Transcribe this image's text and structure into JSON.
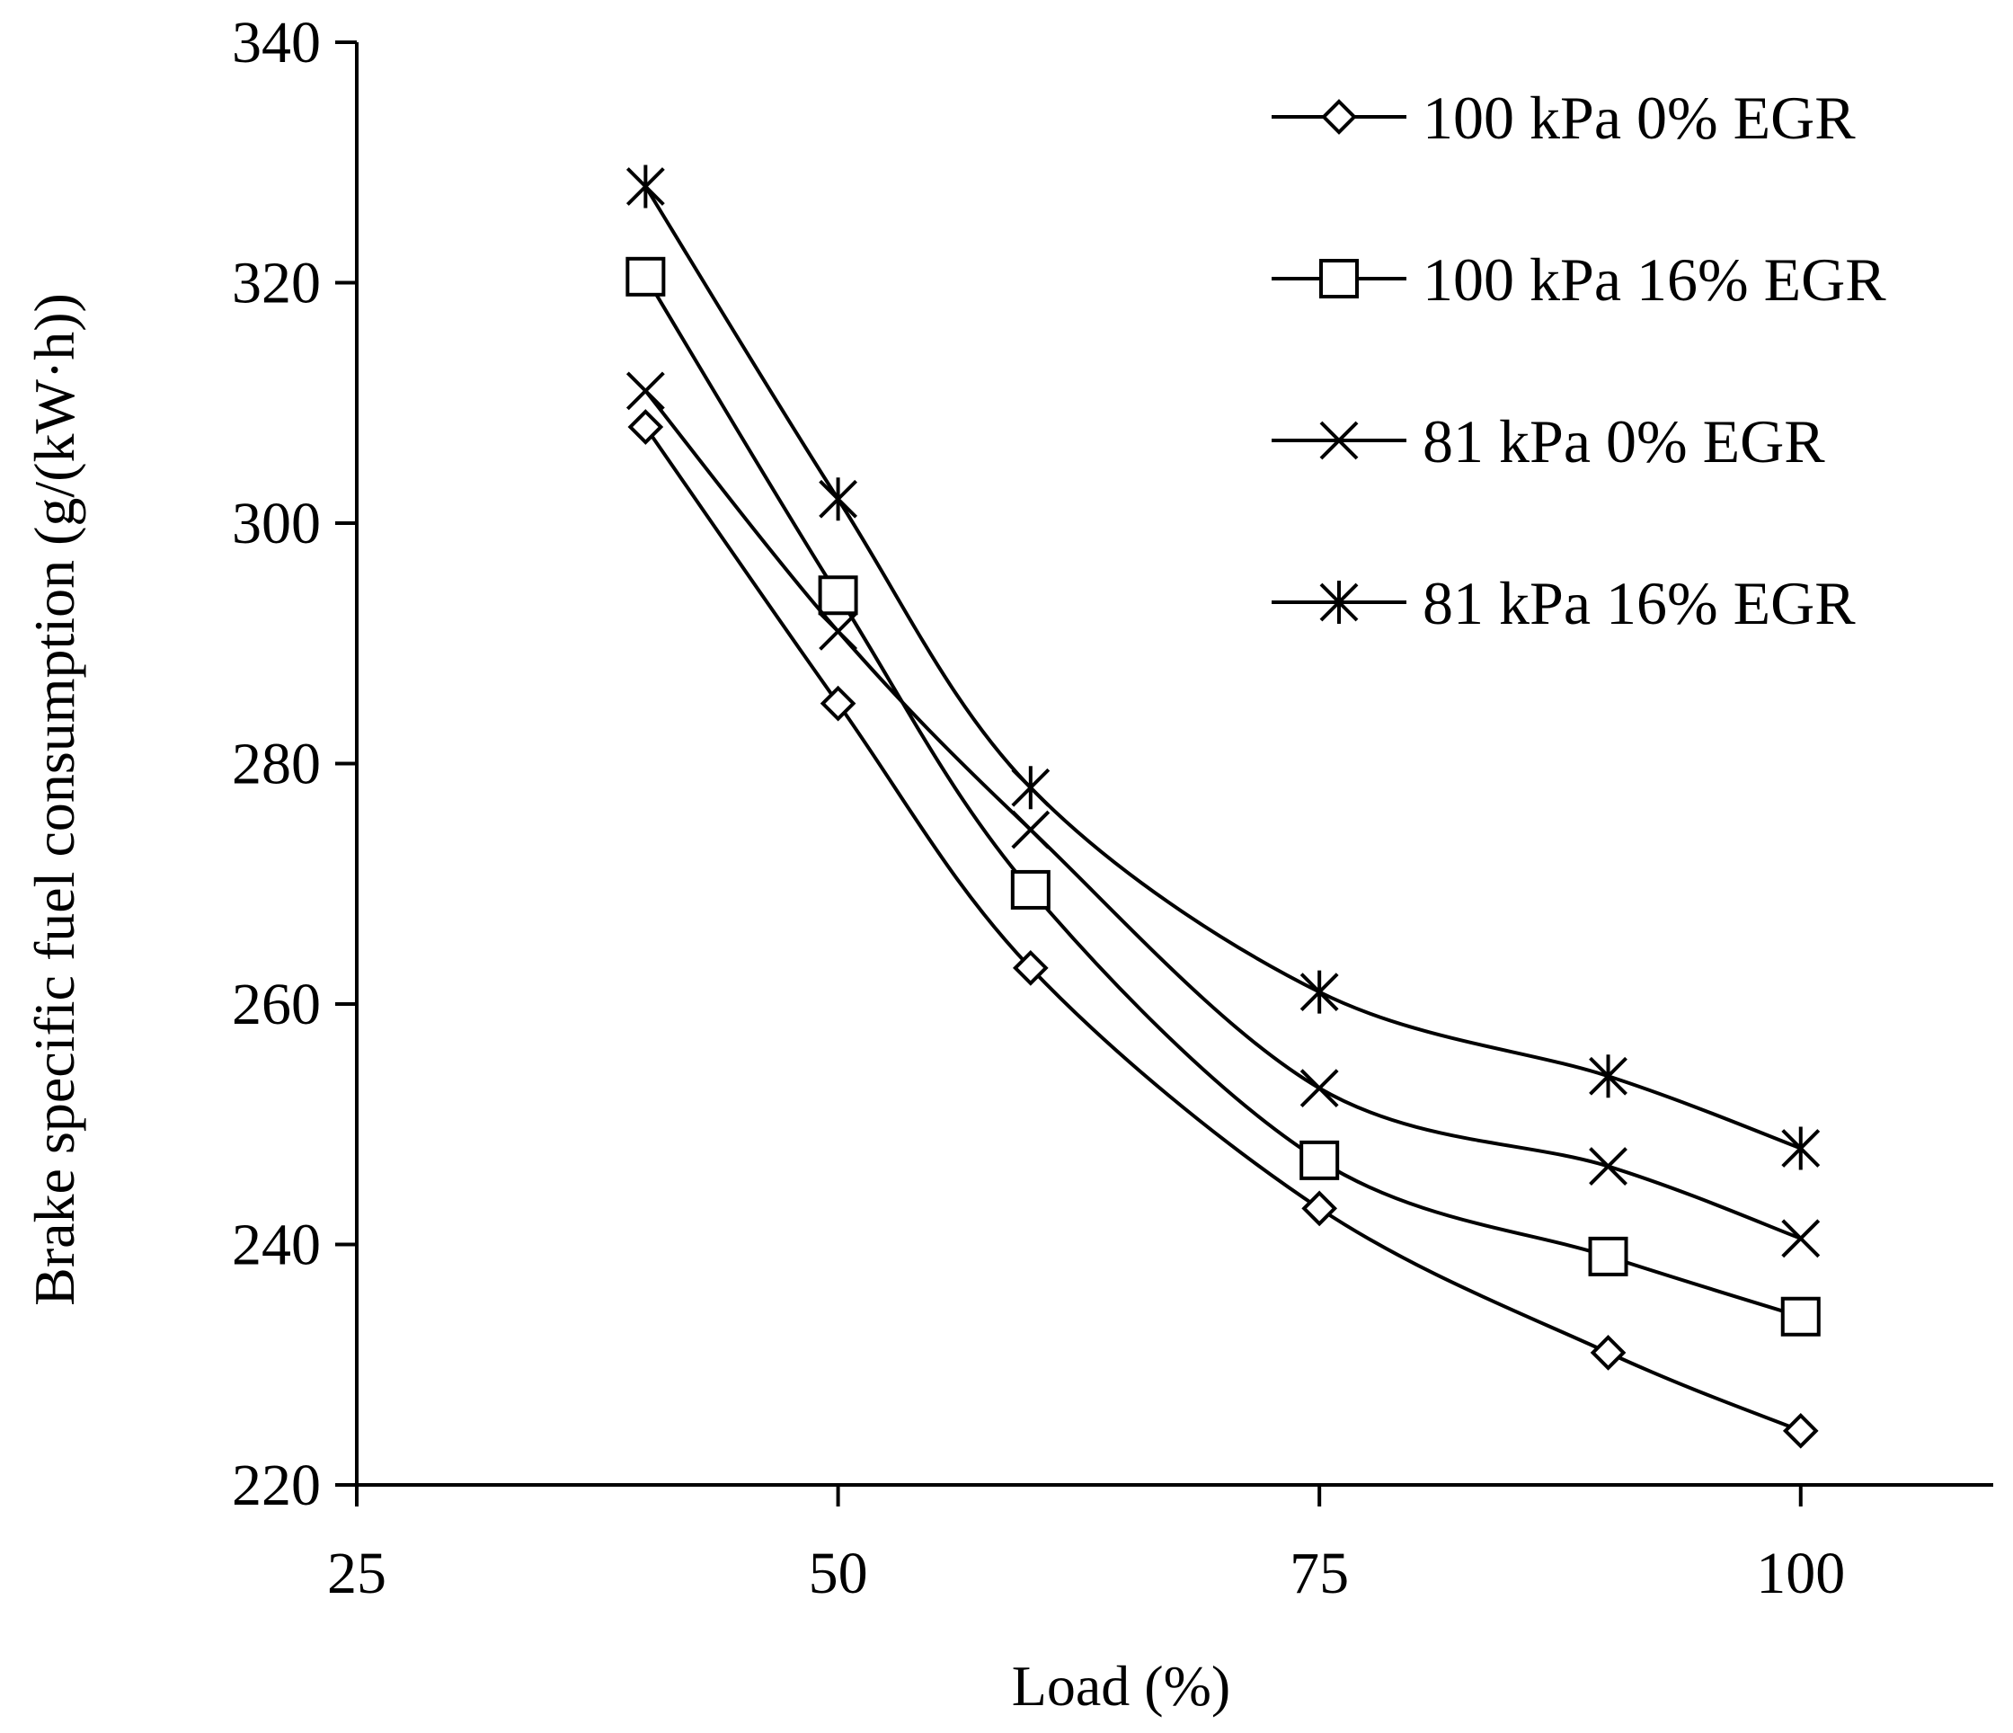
{
  "chart_data": {
    "type": "line",
    "title": "",
    "xlabel": "Load (%)",
    "ylabel": "Brake specific fuel consumption (g/(kW·h))",
    "xlim": [
      25,
      110
    ],
    "ylim": [
      220,
      340
    ],
    "x_ticks": [
      "25",
      "50",
      "75",
      "100"
    ],
    "y_ticks": [
      "220",
      "240",
      "260",
      "280",
      "300",
      "320",
      "340"
    ],
    "x": [
      40,
      50,
      60,
      75,
      90,
      100
    ],
    "grid": false,
    "legend_position": "top-right",
    "series": [
      {
        "name": "100 kPa 0% EGR",
        "marker": "diamond",
        "values": [
          308,
          285,
          263,
          243,
          231,
          224.5
        ]
      },
      {
        "name": "100 kPa 16% EGR",
        "marker": "square",
        "values": [
          320.5,
          294,
          269.5,
          247,
          239,
          234
        ]
      },
      {
        "name": "81 kPa 0% EGR",
        "marker": "x",
        "values": [
          311,
          291,
          274.5,
          253,
          246.5,
          240.5
        ]
      },
      {
        "name": "81 kPa 16% EGR",
        "marker": "star",
        "values": [
          328,
          302,
          278,
          261,
          254,
          248
        ]
      }
    ]
  }
}
